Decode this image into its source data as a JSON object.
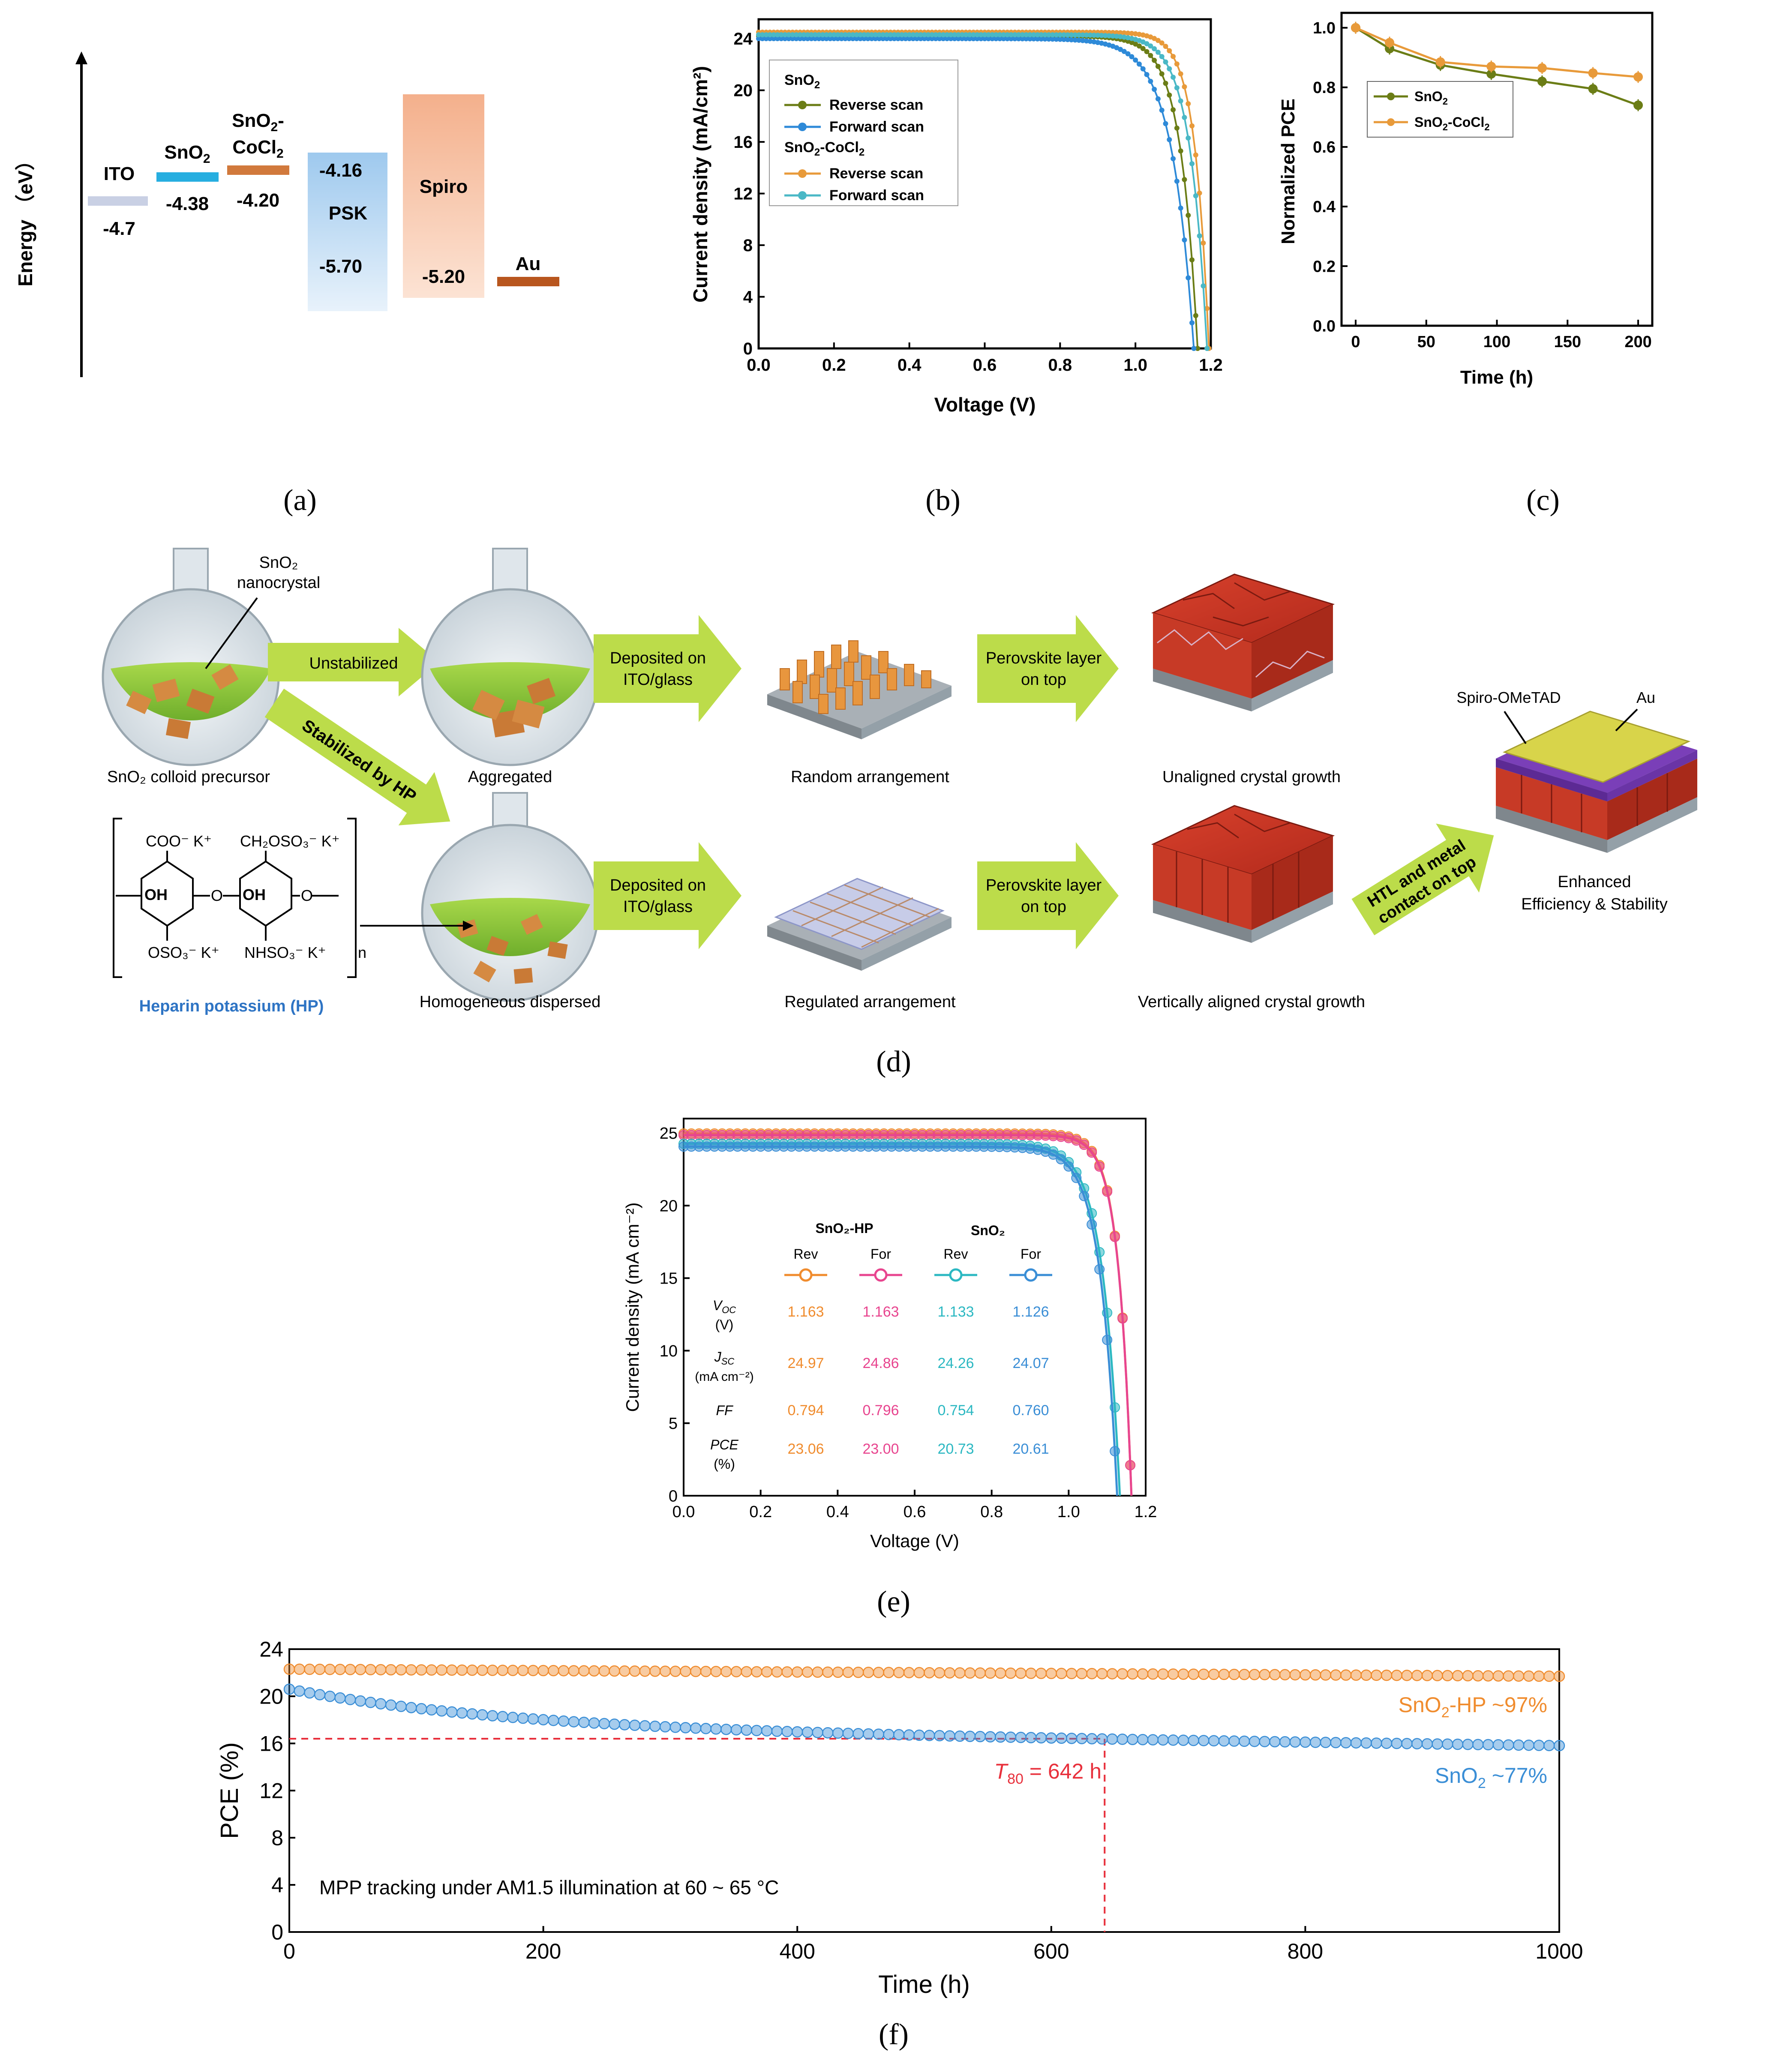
{
  "captions": {
    "a": "(a)",
    "b": "(b)",
    "c": "(c)",
    "d": "(d)",
    "e": "(e)",
    "f": "(f)"
  },
  "colors": {
    "olive": "#6b7d16",
    "orange_b": "#e89a3a",
    "blue_b": "#2e8ad8",
    "teal_b": "#4ab8c6",
    "orange": "#f08c2e",
    "pink": "#e8458f",
    "teal": "#2cb8c2",
    "blue": "#3a8ed6",
    "red": "#e8303c",
    "arrow": "#bcdc4a"
  },
  "panel_a": {
    "axis_label": "Energy （eV）",
    "levels": [
      {
        "name": "ITO",
        "value": "-4.7"
      },
      {
        "name_main": "SnO",
        "name_sub": "2",
        "value": "-4.38"
      },
      {
        "name_main": "SnO",
        "name_sub": "2",
        "name_tail": "-",
        "name_line2": "CoCl",
        "name_line2_sub": "2",
        "value": "-4.20"
      },
      {
        "name": "PSK",
        "value_top": "-4.16",
        "value_bottom": "-5.70"
      },
      {
        "name": "Spiro",
        "value": "-5.20"
      },
      {
        "name": "Au"
      }
    ]
  },
  "chart_data": [
    {
      "id": "b",
      "type": "line",
      "xlabel": "Voltage (V)",
      "ylabel": "Current density (mA/cm²)",
      "xlim": [
        0,
        1.2
      ],
      "ylim": [
        0,
        25.5
      ],
      "xticks": [
        "0.0",
        "0.2",
        "0.4",
        "0.6",
        "0.8",
        "1.0",
        "1.2"
      ],
      "yticks": [
        "0",
        "4",
        "8",
        "12",
        "16",
        "20",
        "24"
      ],
      "legend": {
        "group1_main": "SnO",
        "group1_sub": "2",
        "group2_main": "SnO",
        "group2_sub": "2",
        "group2_tail": "-CoCl",
        "group2_sub2": "2",
        "reverse": "Reverse scan",
        "forward": "Forward scan"
      },
      "series": [
        {
          "name": "SnO2 Reverse scan",
          "jsc": 24.2,
          "voc": 1.165,
          "knee": 0.045,
          "color": "#6b7d16"
        },
        {
          "name": "SnO2 Forward scan",
          "jsc": 24.0,
          "voc": 1.155,
          "knee": 0.058,
          "color": "#2e8ad8"
        },
        {
          "name": "SnO2-CoCl2 Reverse scan",
          "jsc": 24.5,
          "voc": 1.195,
          "knee": 0.037,
          "color": "#e89a3a"
        },
        {
          "name": "SnO2-CoCl2 Forward scan",
          "jsc": 24.3,
          "voc": 1.19,
          "knee": 0.045,
          "color": "#4ab8c6"
        }
      ]
    },
    {
      "id": "c",
      "type": "line",
      "xlabel": "Time (h)",
      "ylabel": "Normalized PCE",
      "xlim": [
        -10,
        210
      ],
      "ylim": [
        0,
        1.05
      ],
      "xticks": [
        "0",
        "50",
        "100",
        "150",
        "200"
      ],
      "yticks": [
        "0.0",
        "0.2",
        "0.4",
        "0.6",
        "0.8",
        "1.0"
      ],
      "legend": {
        "s1_main": "SnO",
        "s1_sub": "2",
        "s2_main": "SnO",
        "s2_sub": "2",
        "s2_tail": "-CoCl",
        "s2_sub2": "2"
      },
      "series": [
        {
          "name": "SnO2",
          "x": [
            0,
            24,
            60,
            96,
            132,
            168,
            200
          ],
          "y": [
            1.0,
            0.93,
            0.875,
            0.845,
            0.82,
            0.795,
            0.74
          ],
          "color": "#6b7d16"
        },
        {
          "name": "SnO2-CoCl2",
          "x": [
            0,
            24,
            60,
            96,
            132,
            168,
            200
          ],
          "y": [
            1.0,
            0.95,
            0.885,
            0.87,
            0.865,
            0.848,
            0.835
          ],
          "color": "#e89a3a"
        }
      ]
    },
    {
      "id": "e",
      "type": "line",
      "xlabel": "Voltage (V)",
      "ylabel": "Current density (mA cm⁻²)",
      "xlim": [
        0,
        1.2
      ],
      "ylim": [
        0,
        26
      ],
      "xticks": [
        "0.0",
        "0.2",
        "0.4",
        "0.6",
        "0.8",
        "1.0",
        "1.2"
      ],
      "yticks": [
        "0",
        "5",
        "10",
        "15",
        "20",
        "25"
      ],
      "table": {
        "group1": "SnO₂-HP",
        "group2": "SnO₂",
        "cols": [
          "Rev",
          "For",
          "Rev",
          "For"
        ],
        "rows": [
          {
            "label1": "V",
            "label1_sub": "OC",
            "label2": "(V)",
            "values": [
              "1.163",
              "1.163",
              "1.133",
              "1.126"
            ]
          },
          {
            "label1": "J",
            "label1_sub": "SC",
            "label2": "(mA cm⁻²)",
            "values": [
              "24.97",
              "24.86",
              "24.26",
              "24.07"
            ]
          },
          {
            "label1": "FF",
            "label2": "",
            "values": [
              "0.794",
              "0.796",
              "0.754",
              "0.760"
            ]
          },
          {
            "label1": "PCE",
            "label2": "(%)",
            "values": [
              "23.06",
              "23.00",
              "20.73",
              "20.61"
            ]
          }
        ]
      },
      "series": [
        {
          "name": "SnO2-HP Rev",
          "jsc": 24.97,
          "voc": 1.163,
          "knee": 0.034,
          "color": "#f08c2e"
        },
        {
          "name": "SnO2-HP For",
          "jsc": 24.86,
          "voc": 1.163,
          "knee": 0.034,
          "color": "#e8458f"
        },
        {
          "name": "SnO2 Rev",
          "jsc": 24.26,
          "voc": 1.133,
          "knee": 0.045,
          "color": "#2cb8c2"
        },
        {
          "name": "SnO2 For",
          "jsc": 24.07,
          "voc": 1.126,
          "knee": 0.044,
          "color": "#3a8ed6"
        }
      ]
    },
    {
      "id": "f",
      "type": "scatter",
      "xlabel": "Time (h)",
      "ylabel": "PCE (%)",
      "xlim": [
        0,
        1000
      ],
      "ylim": [
        0,
        24
      ],
      "xticks": [
        "0",
        "200",
        "400",
        "600",
        "800",
        "1000"
      ],
      "yticks": [
        "0",
        "4",
        "8",
        "12",
        "16",
        "20",
        "24"
      ],
      "annotation": "MPP tracking under AM1.5 illumination at 60 ~ 65 °C",
      "t80": {
        "x": 642,
        "y": 16.4,
        "label_main": "T",
        "label_sub": "80",
        "label_tail": " = 642 h"
      },
      "series": [
        {
          "name": "SnO2-HP",
          "label_main": "SnO",
          "label_sub": "2",
          "label_tail": "-HP ~97%",
          "start": 22.3,
          "end": 21.7,
          "color": "#f08c2e"
        },
        {
          "name": "SnO2",
          "label_main": "SnO",
          "label_sub": "2",
          "label_tail": " ~77%",
          "start": 20.6,
          "end": 15.8,
          "color": "#3a8ed6"
        }
      ]
    }
  ],
  "panel_d": {
    "labels": {
      "nanocrystal_1": "SnO₂",
      "nanocrystal_2": "nanocrystal",
      "precursor": "SnO₂ colloid precursor",
      "unstabilized": "Unstabilized",
      "stabilized": "Stabilized by HP",
      "aggregated": "Aggregated",
      "homogeneous": "Homogeneous dispersed",
      "deposited_1": "Deposited on",
      "deposited_2": "ITO/glass",
      "random": "Random arrangement",
      "regulated": "Regulated arrangement",
      "perovskite_1": "Perovskite layer",
      "perovskite_2": "on top",
      "unaligned": "Unaligned crystal growth",
      "aligned": "Vertically aligned crystal growth",
      "htl_1": "HTL and metal",
      "htl_2": "contact on top",
      "spiro": "Spiro-OMeTAD",
      "au": "Au",
      "enhanced_1": "Enhanced",
      "enhanced_2": "Efficiency & Stability",
      "heparin": "Heparin potassium (HP)",
      "chem_coo": "COO⁻ K⁺",
      "chem_ch2": "CH₂OSO₃⁻ K⁺",
      "chem_oh1": "OH",
      "chem_oh2": "OH",
      "chem_o1": "O",
      "chem_o2": "O",
      "chem_oso3": "OSO₃⁻ K⁺",
      "chem_nhso3": "NHSO₃⁻ K⁺",
      "chem_n": "n"
    }
  }
}
